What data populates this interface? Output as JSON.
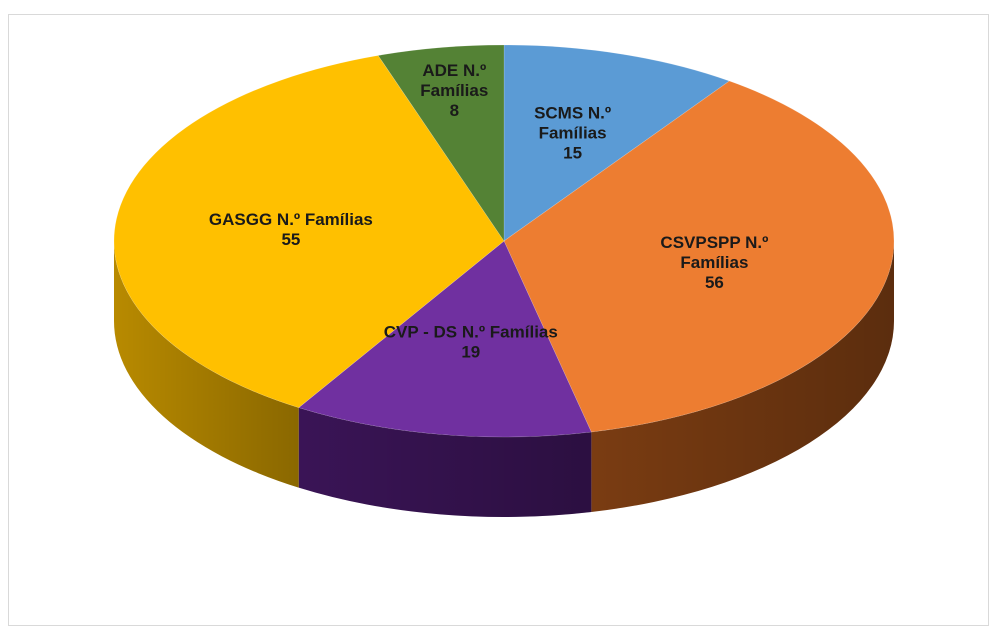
{
  "chart_data": {
    "type": "pie",
    "style": "3d",
    "title": "",
    "slices": [
      {
        "label": "SCMS N.º Famílias",
        "label_lines": [
          "SCMS N.º",
          "Famílias"
        ],
        "value": 15,
        "color": "#5b9bd5",
        "side_color": "#2e6ea6"
      },
      {
        "label": "CSVPSPP N.º Famílias",
        "label_lines": [
          "CSVPSPP N.º",
          "Famílias"
        ],
        "value": 56,
        "color": "#ed7d31",
        "side_color": "#7a3c12"
      },
      {
        "label": "CVP - DS N.º Famílias",
        "label_lines": [
          "CVP - DS N.º Famílias"
        ],
        "value": 19,
        "color": "#7030a0",
        "side_color": "#3a1456"
      },
      {
        "label": "GASGG N.º Famílias",
        "label_lines": [
          "GASGG N.º Famílias"
        ],
        "value": 55,
        "color": "#ffc000",
        "side_color": "#b88a00"
      },
      {
        "label": "ADE N.º Famílias",
        "label_lines": [
          "ADE N.º",
          "Famílias"
        ],
        "value": 8,
        "color": "#548235",
        "side_color": "#2e4a1c"
      }
    ],
    "start_angle_deg": 90,
    "direction": "clockwise",
    "legend": "none",
    "data_labels": "category-and-value-inside"
  }
}
